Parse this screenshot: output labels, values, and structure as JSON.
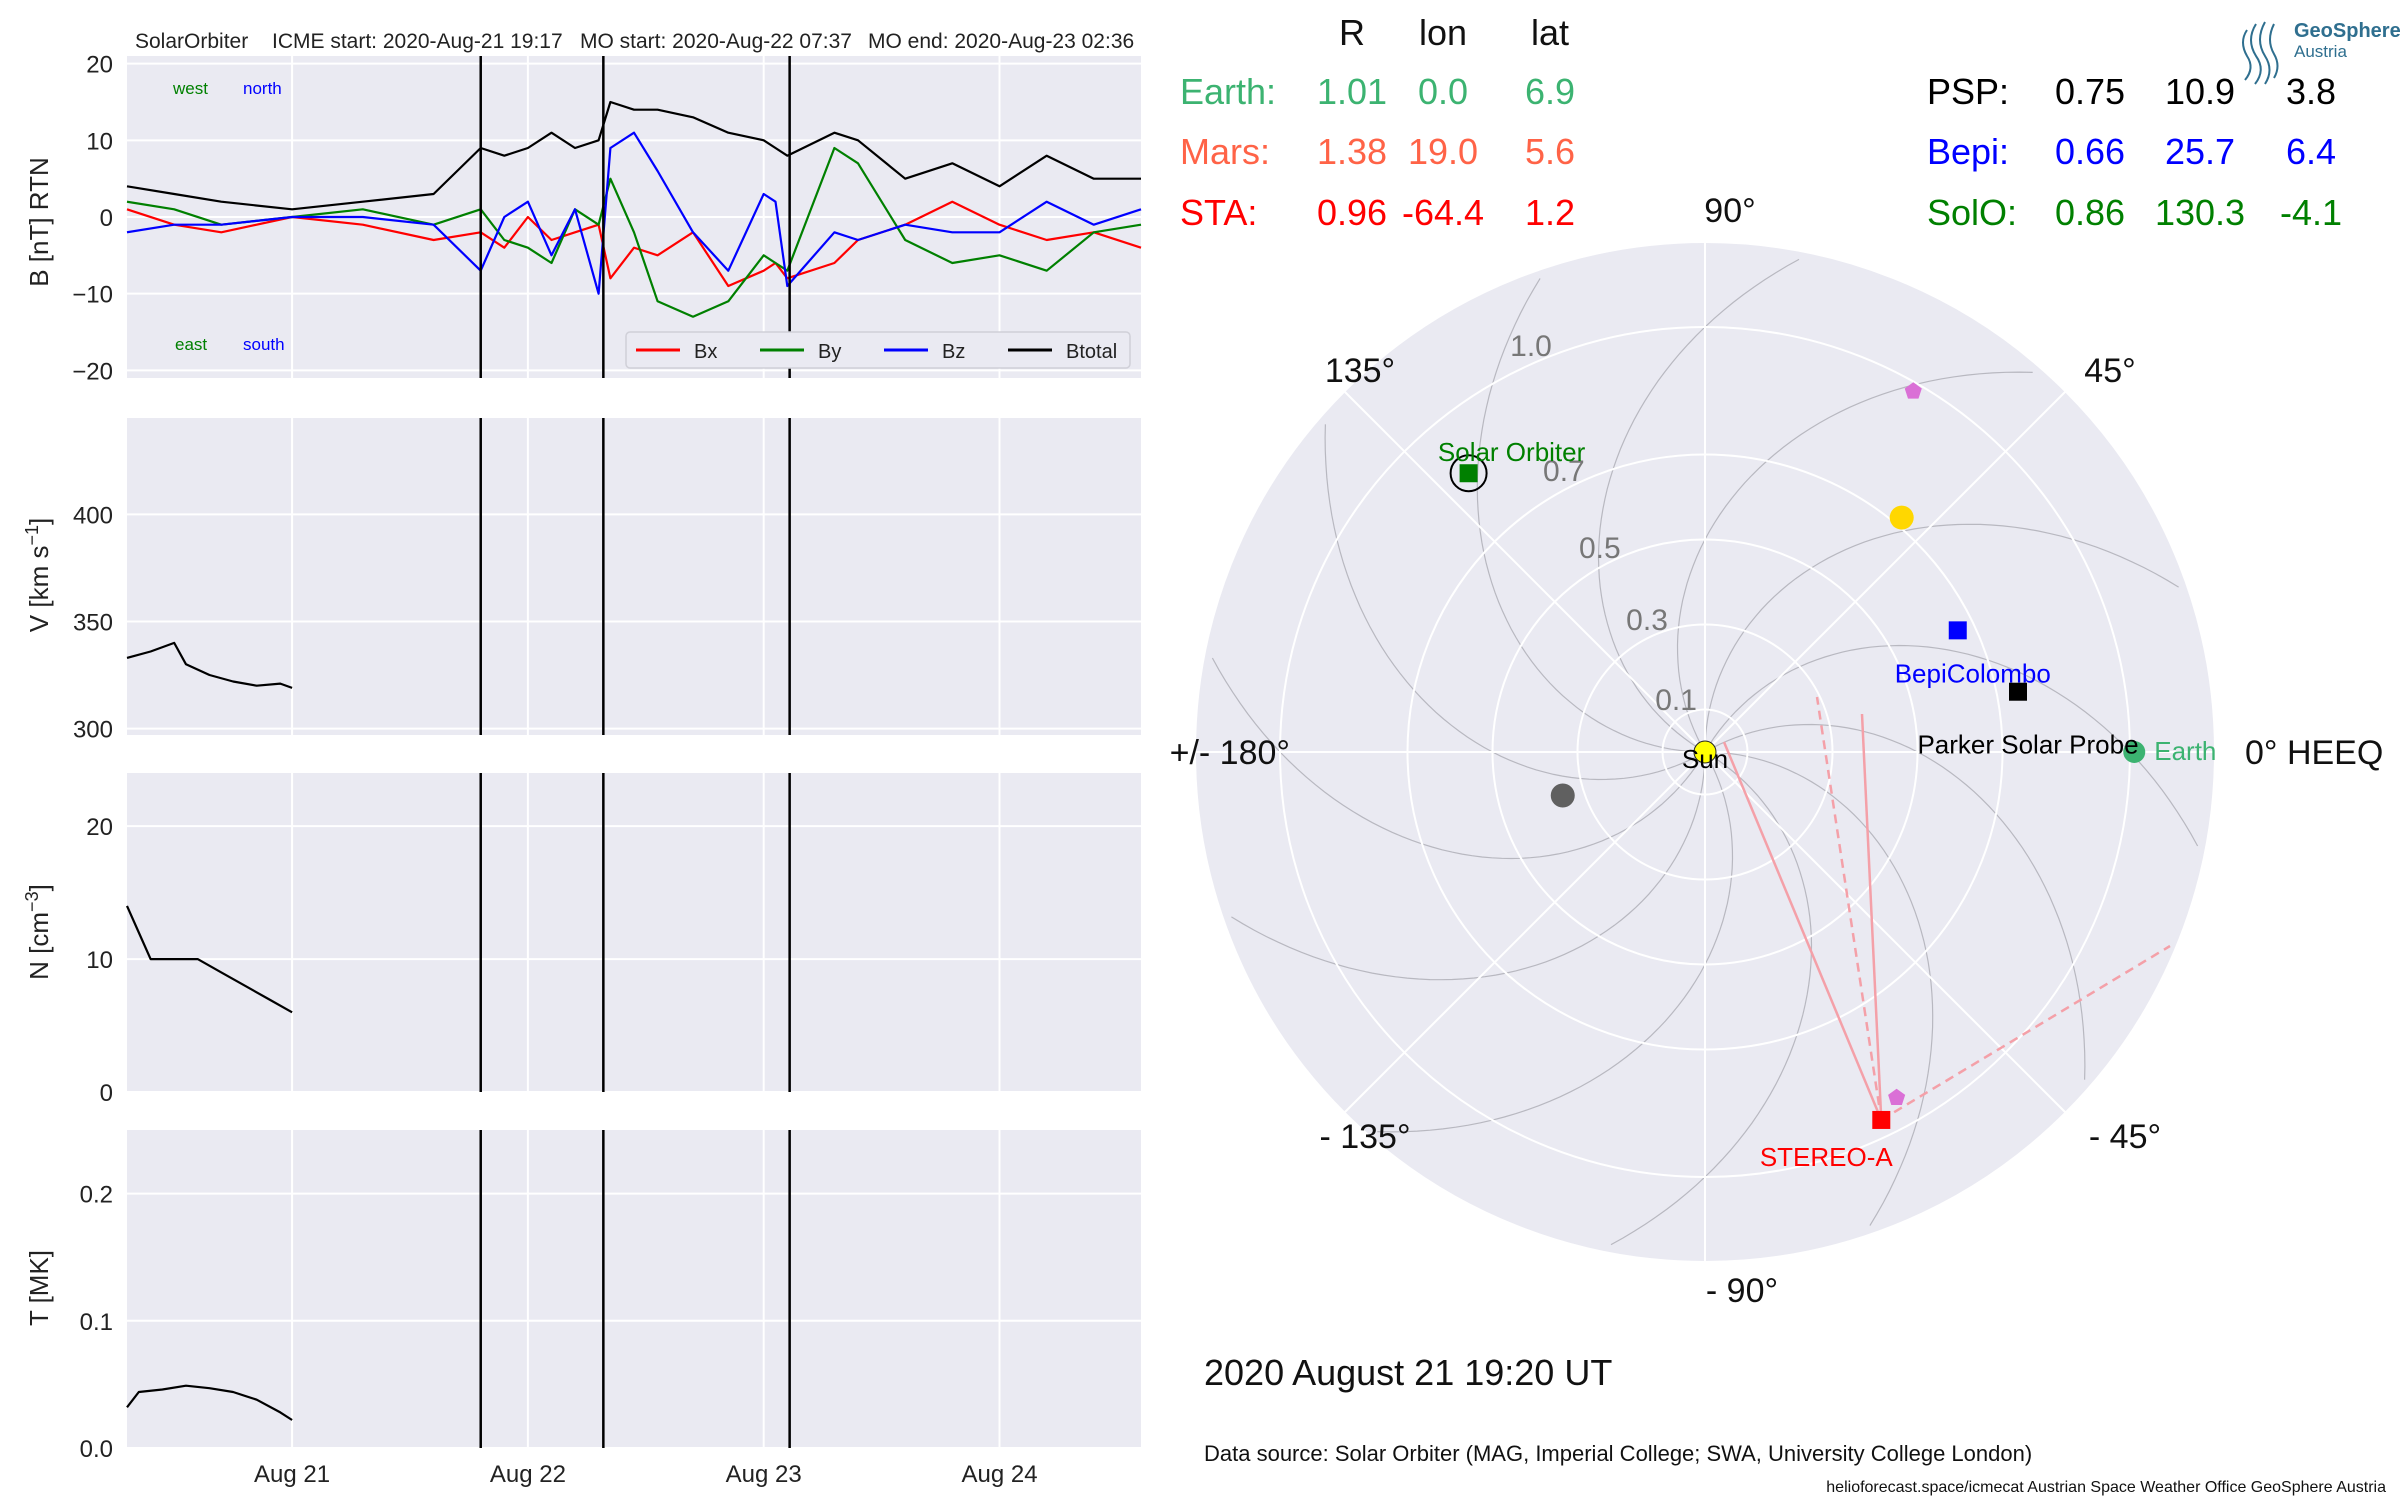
{
  "chart_data": [
    {
      "type": "line",
      "panel": "magnetic-field",
      "header": {
        "spacecraft": "SolarOrbiter",
        "icme_start": "ICME start: 2020-Aug-21 19:17",
        "mo_start": "MO start: 2020-Aug-22 07:37",
        "mo_end": "MO end: 2020-Aug-23 02:36"
      },
      "ylabel": "B [nT] RTN",
      "ylim": [
        -21,
        21
      ],
      "yticks": [
        "−20",
        "−10",
        "0",
        "10",
        "20"
      ],
      "ytick_values": [
        -20,
        -10,
        0,
        10,
        20
      ],
      "xlim_days": [
        20.3,
        24.6
      ],
      "xticks": [
        "Aug 21",
        "Aug 22",
        "Aug 23",
        "Aug 24"
      ],
      "xtick_days": [
        21,
        22,
        23,
        24
      ],
      "event_lines_days": [
        21.8,
        22.32,
        23.11
      ],
      "corner_labels": {
        "west": "west",
        "north": "north",
        "east": "east",
        "south": "south"
      },
      "series": [
        {
          "name": "Bx",
          "color": "#ff0000",
          "x": [
            20.3,
            20.5,
            20.7,
            21.0,
            21.3,
            21.6,
            21.8,
            21.9,
            22.0,
            22.1,
            22.2,
            22.3,
            22.35,
            22.45,
            22.55,
            22.7,
            22.85,
            23.0,
            23.05,
            23.1,
            23.3,
            23.4,
            23.6,
            23.8,
            24.0,
            24.2,
            24.4,
            24.6
          ],
          "y": [
            1,
            -1,
            -2,
            0,
            -1,
            -3,
            -2,
            -4,
            0,
            -3,
            -2,
            -1,
            -8,
            -4,
            -5,
            -2,
            -9,
            -7,
            -6,
            -8,
            -6,
            -3,
            -1,
            2,
            -1,
            -3,
            -2,
            -4
          ]
        },
        {
          "name": "By",
          "color": "#008000",
          "x": [
            20.3,
            20.5,
            20.7,
            21.0,
            21.3,
            21.6,
            21.8,
            21.9,
            22.0,
            22.1,
            22.2,
            22.3,
            22.35,
            22.45,
            22.55,
            22.7,
            22.85,
            23.0,
            23.05,
            23.1,
            23.3,
            23.4,
            23.6,
            23.8,
            24.0,
            24.2,
            24.4,
            24.6
          ],
          "y": [
            2,
            1,
            -1,
            0,
            1,
            -1,
            1,
            -3,
            -4,
            -6,
            1,
            -1,
            5,
            -2,
            -11,
            -13,
            -11,
            -5,
            -6,
            -7,
            9,
            7,
            -3,
            -6,
            -5,
            -7,
            -2,
            -1
          ]
        },
        {
          "name": "Bz",
          "color": "#0000ff",
          "x": [
            20.3,
            20.5,
            20.7,
            21.0,
            21.3,
            21.6,
            21.8,
            21.9,
            22.0,
            22.1,
            22.2,
            22.3,
            22.35,
            22.45,
            22.55,
            22.7,
            22.85,
            23.0,
            23.05,
            23.1,
            23.3,
            23.4,
            23.6,
            23.8,
            24.0,
            24.2,
            24.4,
            24.6
          ],
          "y": [
            -2,
            -1,
            -1,
            0,
            0,
            -1,
            -7,
            0,
            2,
            -5,
            1,
            -10,
            9,
            11,
            6,
            -2,
            -7,
            3,
            2,
            -9,
            -2,
            -3,
            -1,
            -2,
            -2,
            2,
            -1,
            1
          ]
        },
        {
          "name": "Btotal",
          "color": "#000000",
          "x": [
            20.3,
            20.5,
            20.7,
            21.0,
            21.3,
            21.6,
            21.8,
            21.9,
            22.0,
            22.1,
            22.2,
            22.3,
            22.35,
            22.45,
            22.55,
            22.7,
            22.85,
            23.0,
            23.05,
            23.1,
            23.3,
            23.4,
            23.6,
            23.8,
            24.0,
            24.2,
            24.4,
            24.6
          ],
          "y": [
            4,
            3,
            2,
            1,
            2,
            3,
            9,
            8,
            9,
            11,
            9,
            10,
            15,
            14,
            14,
            13,
            11,
            10,
            9,
            8,
            11,
            10,
            5,
            7,
            4,
            8,
            5,
            5
          ]
        }
      ],
      "legend": "bottom-right",
      "legend_entries": [
        "Bx",
        "By",
        "Bz",
        "Btotal"
      ],
      "grid": true
    },
    {
      "type": "line",
      "panel": "speed",
      "ylabel": "V [km s$^{-1}$]",
      "ylim": [
        297,
        445
      ],
      "yticks": [
        "300",
        "350",
        "400"
      ],
      "ytick_values": [
        300,
        350,
        400
      ],
      "series": [
        {
          "color": "#000000",
          "x": [
            20.3,
            20.4,
            20.5,
            20.55,
            20.65,
            20.75,
            20.85,
            20.95,
            21.0
          ],
          "y": [
            333,
            336,
            340,
            330,
            325,
            322,
            320,
            321,
            319
          ]
        }
      ],
      "grid": true
    },
    {
      "type": "line",
      "panel": "density",
      "ylabel": "N [cm$^{-3}$]",
      "ylim": [
        0,
        24
      ],
      "yticks": [
        "0",
        "10",
        "20"
      ],
      "ytick_values": [
        0,
        10,
        20
      ],
      "series": [
        {
          "color": "#000000",
          "x": [
            20.3,
            20.35,
            20.4,
            20.5,
            20.6,
            20.7,
            20.8,
            20.9,
            21.0
          ],
          "y": [
            14,
            12,
            10,
            10,
            10,
            9,
            8,
            7,
            6
          ]
        }
      ],
      "grid": true
    },
    {
      "type": "line",
      "panel": "temperature",
      "ylabel": "T [MK]",
      "ylim": [
        0,
        0.25
      ],
      "yticks": [
        "0.0",
        "0.1",
        "0.2"
      ],
      "ytick_values": [
        0.0,
        0.1,
        0.2
      ],
      "series": [
        {
          "color": "#000000",
          "x": [
            20.3,
            20.35,
            20.45,
            20.55,
            20.65,
            20.75,
            20.85,
            20.95,
            21.0
          ],
          "y": [
            0.032,
            0.044,
            0.046,
            0.049,
            0.047,
            0.044,
            0.038,
            0.028,
            0.022
          ]
        }
      ],
      "grid": true
    },
    {
      "type": "scatter",
      "panel": "polar-heeq",
      "radial_ticks": [
        "0.1",
        "0.3",
        "0.5",
        "0.7",
        "1.0"
      ],
      "angle_labels": {
        "a0": "0° HEEQ",
        "a45": "45°",
        "a90": "90°",
        "a135": "135°",
        "a180": "+/- 180°",
        "am135": "- 135°",
        "am90": "- 90°",
        "am45": "- 45°"
      },
      "bodies": [
        {
          "name": "Earth",
          "label": "Earth",
          "r": 1.01,
          "lon": 0.0,
          "color": "#3cb371",
          "marker": "circle"
        },
        {
          "name": "STEREO-A",
          "label": "STEREO-A",
          "r": 0.96,
          "lon": -64.4,
          "color": "#ff0000",
          "marker": "square"
        },
        {
          "name": "Solar Orbiter",
          "label": "Solar Orbiter",
          "r": 0.86,
          "lon": 130.3,
          "color": "#008000",
          "marker": "square"
        },
        {
          "name": "BepiColombo",
          "label": "BepiColombo",
          "r": 0.66,
          "lon": 25.7,
          "color": "#0000ff",
          "marker": "square"
        },
        {
          "name": "Parker Solar Probe",
          "label": "Parker Solar Probe",
          "r": 0.75,
          "lon": 10.9,
          "color": "#000000",
          "marker": "square"
        },
        {
          "name": "Sun",
          "label": "Sun",
          "r": 0.0,
          "lon": 0.0,
          "color": "#ffff00",
          "marker": "circle"
        }
      ],
      "planets_unlabeled": [
        {
          "r": 0.72,
          "lon": 50,
          "color": "#ffd700",
          "marker": "circle"
        },
        {
          "r": 0.35,
          "lon": 197,
          "color": "#606060",
          "marker": "circle"
        },
        {
          "r": 0.98,
          "lon": 60,
          "color": "#da70d6",
          "marker": "pentagon"
        },
        {
          "r": 0.93,
          "lon": -61,
          "color": "#da70d6",
          "marker": "pentagon"
        }
      ],
      "sta_fov_lines": [
        {
          "to_r": 0.95,
          "to_lon": 112,
          "style": "solid"
        },
        {
          "to_r": 0.95,
          "to_lon": 128,
          "style": "solid"
        },
        {
          "to_r": 0.9,
          "to_lon": 145,
          "style": "dashed"
        },
        {
          "to_r": 1.05,
          "to_lon": 210,
          "style": "dashed"
        }
      ],
      "grid": true
    }
  ],
  "table": {
    "headers": [
      "R",
      "lon",
      "lat"
    ],
    "left_rows": [
      {
        "name": "Earth:",
        "R": "1.01",
        "lon": "0.0",
        "lat": "6.9",
        "color": "#3cb371"
      },
      {
        "name": "Mars:",
        "R": "1.38",
        "lon": "19.0",
        "lat": "5.6",
        "color": "#ff6347"
      },
      {
        "name": "STA:",
        "R": "0.96",
        "lon": "-64.4",
        "lat": "1.2",
        "color": "#ff0000"
      }
    ],
    "right_rows": [
      {
        "name": "PSP:",
        "R": "0.75",
        "lon": "10.9",
        "lat": "3.8",
        "color": "#000000"
      },
      {
        "name": "Bepi:",
        "R": "0.66",
        "lon": "25.7",
        "lat": "6.4",
        "color": "#0000ff"
      },
      {
        "name": "SolO:",
        "R": "0.86",
        "lon": "130.3",
        "lat": "-4.1",
        "color": "#008000"
      }
    ]
  },
  "logo": {
    "line1": "GeoSphere",
    "line2": "Austria"
  },
  "date_label": "2020 August 21  19:20 UT",
  "data_source": "Data source: Solar Orbiter (MAG, Imperial College; SWA, University College London)",
  "credit": "helioforecast.space/icmecat   Austrian Space Weather Office   GeoSphere Austria"
}
